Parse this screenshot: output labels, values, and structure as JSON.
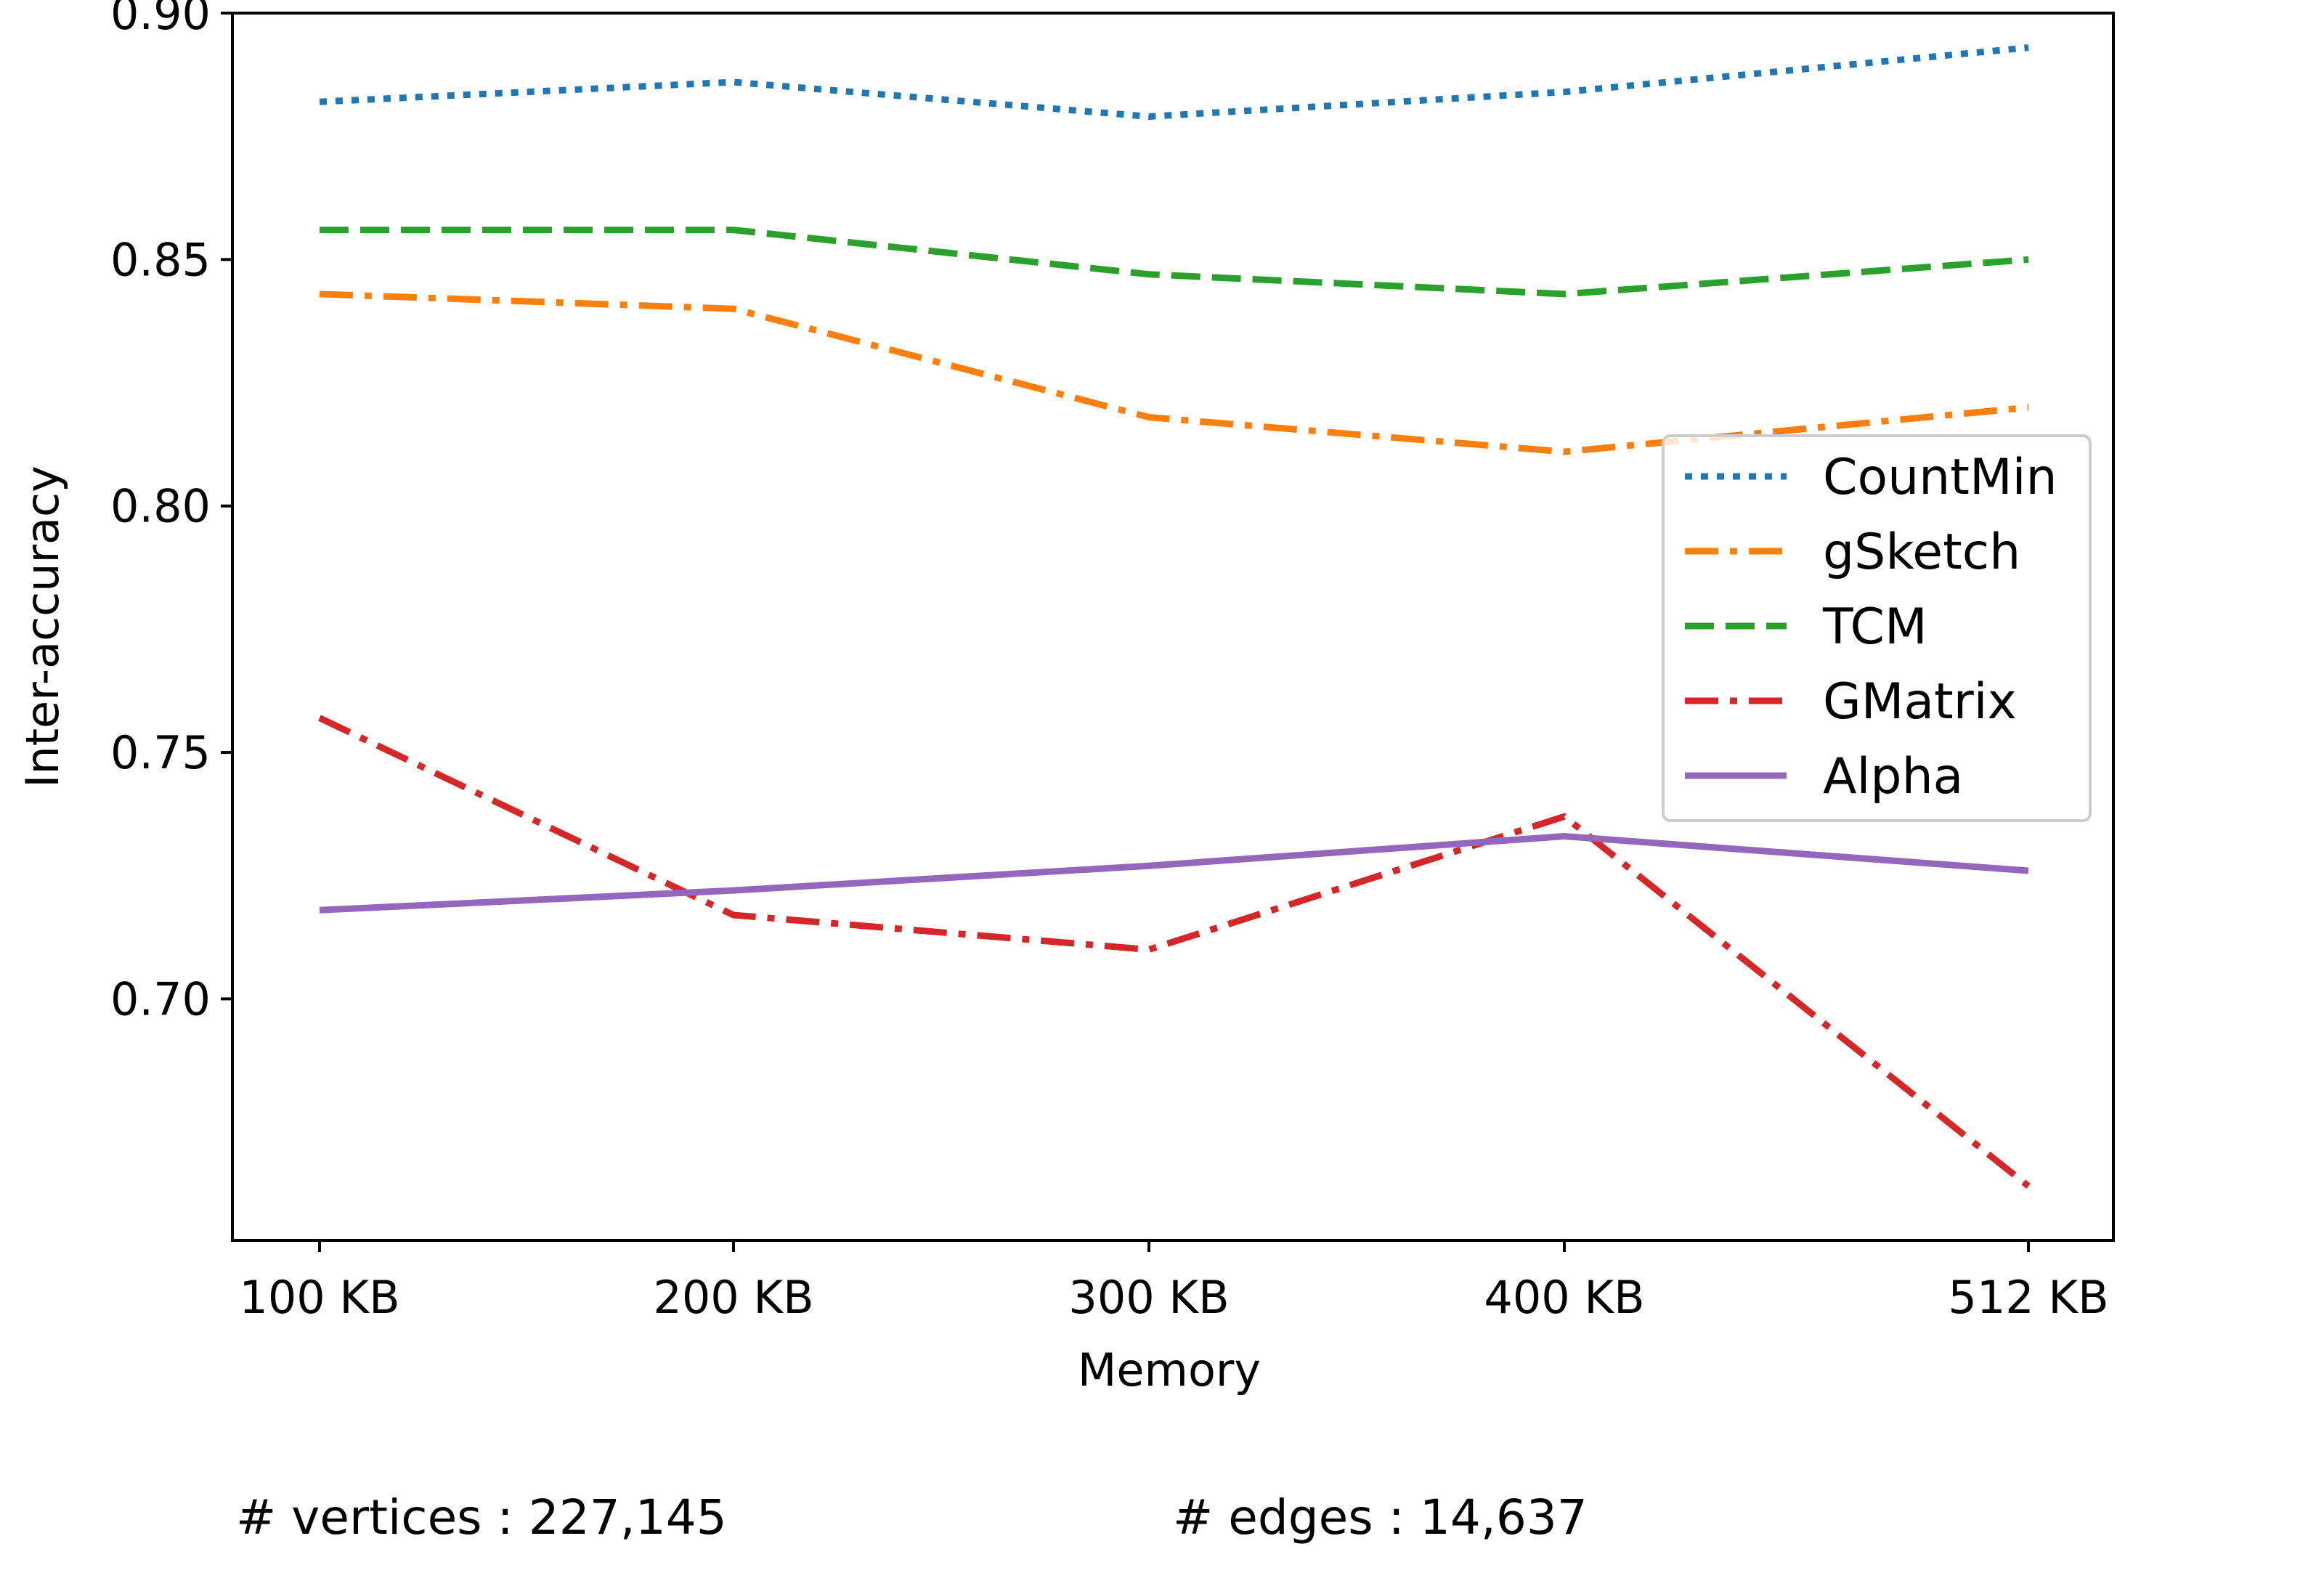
{
  "chart_data": {
    "type": "line",
    "title": "",
    "xlabel": "Memory",
    "ylabel": "Inter-accuracy",
    "categories": [
      "100 KB",
      "200 KB",
      "300 KB",
      "400 KB",
      "512 KB"
    ],
    "x": [
      100,
      200,
      300,
      400,
      512
    ],
    "ylim": [
      0.651,
      0.9
    ],
    "yticks": [
      "0.70",
      "0.75",
      "0.80",
      "0.85",
      "0.90"
    ],
    "grid": false,
    "legend_position": "right",
    "series": [
      {
        "name": "CountMin",
        "color": "#1f77b4",
        "dash": "dotted",
        "values": [
          0.882,
          0.886,
          0.879,
          0.884,
          0.893
        ]
      },
      {
        "name": "gSketch",
        "color": "#ff7f0e",
        "dash": "dashdot",
        "values": [
          0.843,
          0.84,
          0.818,
          0.811,
          0.82
        ]
      },
      {
        "name": "TCM",
        "color": "#2ca02c",
        "dash": "dashed",
        "values": [
          0.856,
          0.856,
          0.847,
          0.843,
          0.85
        ]
      },
      {
        "name": "GMatrix",
        "color": "#d62728",
        "dash": "dashdot",
        "values": [
          0.757,
          0.717,
          0.71,
          0.737,
          0.662
        ]
      },
      {
        "name": "Alpha",
        "color": "#9467bd",
        "dash": "solid",
        "values": [
          0.718,
          0.722,
          0.727,
          0.733,
          0.726
        ]
      }
    ]
  },
  "footer": {
    "vertices": "# vertices : 227,145",
    "edges": "# edges : 14,637"
  }
}
